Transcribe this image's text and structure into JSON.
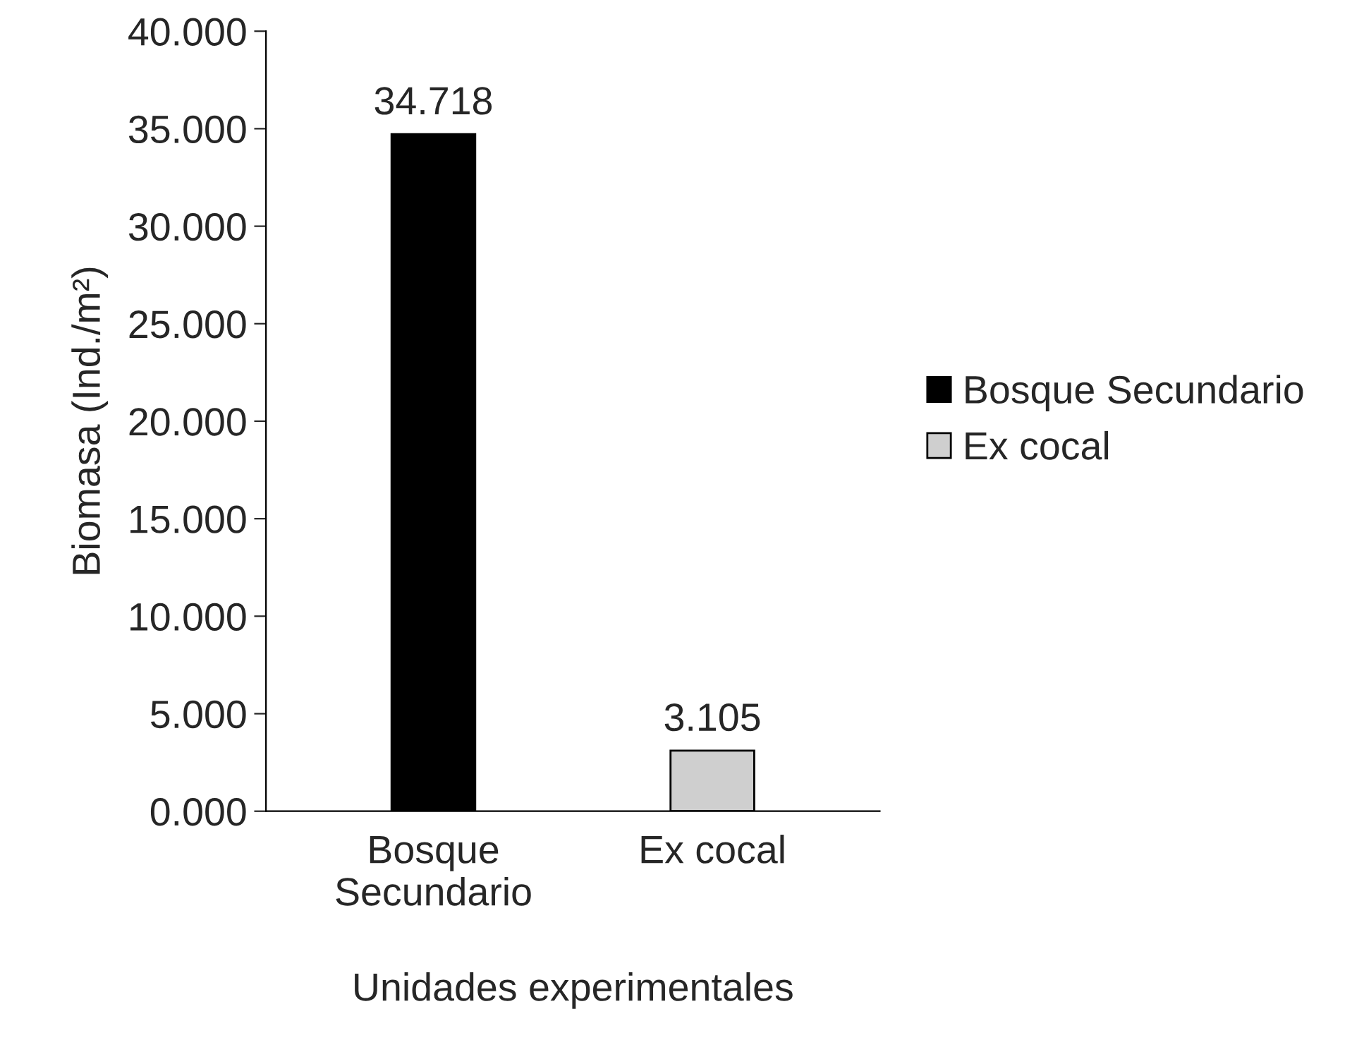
{
  "chart_data": {
    "type": "bar",
    "categories": [
      "Bosque\nSecundario",
      "Ex cocal"
    ],
    "series": [
      {
        "name": "Bosque Secundario",
        "color": "#000000",
        "values": [
          34.718,
          null
        ]
      },
      {
        "name": "Ex cocal",
        "color": "#cfcfcf",
        "values": [
          null,
          3.105
        ]
      }
    ],
    "ylabel": "Biomasa (Ind./m²)",
    "xlabel": "Unidades experimentales",
    "ylim": [
      0,
      40
    ],
    "yticks": [
      {
        "value": 0,
        "label": "0.000"
      },
      {
        "value": 5,
        "label": "5.000"
      },
      {
        "value": 10,
        "label": "10.000"
      },
      {
        "value": 15,
        "label": "15.000"
      },
      {
        "value": 20,
        "label": "20.000"
      },
      {
        "value": 25,
        "label": "25.000"
      },
      {
        "value": 30,
        "label": "30.000"
      },
      {
        "value": 35,
        "label": "35.000"
      },
      {
        "value": 40,
        "label": "40.000"
      }
    ],
    "data_labels": true,
    "legend": "right",
    "grid": false
  }
}
